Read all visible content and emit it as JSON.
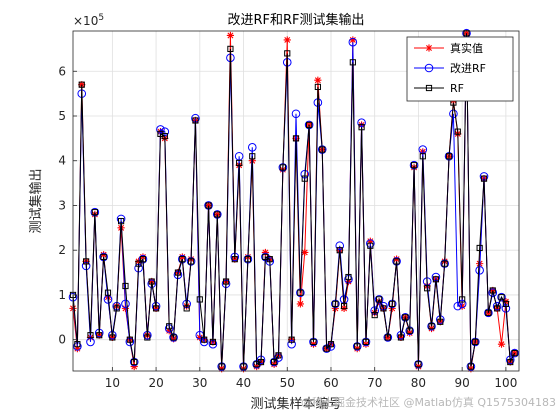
{
  "chart_data": {
    "type": "line",
    "title": "改进RF和RF测试集输出",
    "xlabel": "测试集样本编号",
    "ylabel": "测试集输出",
    "y_exponent_label": "×10",
    "y_exponent_power": "5",
    "xlim": [
      1,
      103
    ],
    "ylim": [
      -0.7,
      6.9
    ],
    "x_ticks": [
      10,
      20,
      30,
      40,
      50,
      60,
      70,
      80,
      90,
      100
    ],
    "y_ticks": [
      0,
      1,
      2,
      3,
      4,
      5,
      6
    ],
    "grid": true,
    "legend_position": "top-right",
    "x": [
      1,
      2,
      3,
      4,
      5,
      6,
      7,
      8,
      9,
      10,
      11,
      12,
      13,
      14,
      15,
      16,
      17,
      18,
      19,
      20,
      21,
      22,
      23,
      24,
      25,
      26,
      27,
      28,
      29,
      30,
      31,
      32,
      33,
      34,
      35,
      36,
      37,
      38,
      39,
      40,
      41,
      42,
      43,
      44,
      45,
      46,
      47,
      48,
      49,
      50,
      51,
      52,
      53,
      54,
      55,
      56,
      57,
      58,
      59,
      60,
      61,
      62,
      63,
      64,
      65,
      66,
      67,
      68,
      69,
      70,
      71,
      72,
      73,
      74,
      75,
      76,
      77,
      78,
      79,
      80,
      81,
      82,
      83,
      84,
      85,
      86,
      87,
      88,
      89,
      90,
      91,
      92,
      93,
      94,
      95,
      96,
      97,
      98,
      99,
      100,
      101,
      102
    ],
    "series": [
      {
        "name": "真实值",
        "color": "#ff0000",
        "marker": "star",
        "values": [
          0.7,
          -0.2,
          5.7,
          1.75,
          0.05,
          2.8,
          0.1,
          1.9,
          0.95,
          0.05,
          0.75,
          2.5,
          0.7,
          0,
          -0.6,
          1.75,
          1.85,
          0.1,
          1.3,
          0.7,
          4.65,
          4.5,
          0.2,
          0.02,
          1.5,
          1.85,
          0.75,
          1.8,
          4.9,
          0.05,
          0,
          3.0,
          -0.05,
          2.8,
          -0.65,
          1.3,
          6.8,
          1.8,
          3.9,
          -0.65,
          1.85,
          4.0,
          -0.6,
          -0.5,
          1.95,
          1.8,
          -0.55,
          -0.35,
          3.8,
          6.7,
          0,
          4.5,
          0.8,
          1.95,
          4.8,
          -0.1,
          5.8,
          4.25,
          -0.2,
          -0.1,
          0.7,
          2.0,
          0.7,
          1.3,
          6.7,
          -0.2,
          4.8,
          -0.1,
          2.2,
          0.6,
          0.85,
          0.7,
          0.05,
          0.7,
          1.8,
          0.05,
          0.5,
          0.15,
          3.85,
          -0.6,
          4.2,
          1.2,
          0.25,
          1.35,
          0.4,
          1.75,
          4.1,
          5.35,
          4.6,
          0.75,
          6.85,
          -0.65,
          -0.05,
          1.7,
          3.6,
          0.6,
          1.1,
          0.7,
          -0.1,
          0.85,
          -0.5,
          -0.3
        ]
      },
      {
        "name": "改进RF",
        "color": "#0000ff",
        "marker": "circle",
        "values": [
          0.95,
          -0.15,
          5.5,
          1.65,
          -0.05,
          2.85,
          0.15,
          1.85,
          0.9,
          0.1,
          0.75,
          2.7,
          0.8,
          -0.05,
          -0.5,
          1.6,
          1.8,
          0.1,
          1.25,
          0.75,
          4.7,
          4.65,
          0.25,
          0.05,
          1.45,
          1.8,
          0.8,
          1.75,
          4.95,
          0.1,
          -0.05,
          3.0,
          -0.1,
          2.8,
          -0.6,
          1.25,
          6.3,
          1.85,
          4.1,
          -0.6,
          1.8,
          4.3,
          -0.55,
          -0.45,
          1.85,
          1.75,
          -0.5,
          -0.4,
          3.85,
          6.2,
          -0.1,
          5.05,
          1.05,
          3.7,
          4.8,
          -0.05,
          5.3,
          4.25,
          -0.2,
          -0.15,
          0.8,
          2.1,
          0.9,
          1.35,
          6.65,
          -0.15,
          4.85,
          -0.05,
          2.15,
          0.65,
          0.9,
          0.75,
          0.05,
          0.8,
          1.75,
          0.1,
          0.5,
          0.2,
          3.9,
          -0.55,
          4.25,
          1.3,
          0.3,
          1.4,
          0.45,
          1.7,
          4.1,
          5.05,
          0.75,
          0.8,
          6.85,
          -0.6,
          -0.05,
          1.55,
          3.65,
          0.6,
          1.05,
          0.75,
          0.95,
          0.7,
          -0.45,
          -0.3
        ]
      },
      {
        "name": "RF",
        "color": "#000000",
        "marker": "square",
        "values": [
          1.0,
          -0.1,
          5.7,
          1.75,
          0.1,
          2.85,
          0.1,
          1.85,
          1.05,
          0.05,
          0.7,
          2.65,
          1.2,
          0,
          -0.5,
          1.7,
          1.8,
          0.05,
          1.3,
          0.7,
          4.6,
          4.55,
          0.3,
          0.05,
          1.5,
          1.8,
          0.7,
          1.75,
          4.9,
          0.9,
          0,
          3.0,
          -0.05,
          2.8,
          -0.6,
          1.3,
          6.5,
          1.8,
          3.95,
          -0.6,
          1.8,
          4.1,
          -0.55,
          -0.5,
          1.85,
          1.8,
          -0.5,
          -0.35,
          3.85,
          6.4,
          0,
          4.5,
          1.05,
          3.6,
          4.8,
          -0.05,
          5.65,
          4.25,
          -0.2,
          -0.1,
          0.8,
          2.0,
          0.75,
          1.4,
          6.2,
          -0.15,
          4.75,
          -0.05,
          2.1,
          0.55,
          0.9,
          0.7,
          0.05,
          0.8,
          1.75,
          0.05,
          0.5,
          0.2,
          3.9,
          -0.55,
          4.1,
          1.15,
          0.3,
          1.35,
          0.4,
          1.7,
          4.1,
          5.3,
          4.65,
          0.9,
          6.85,
          -0.6,
          -0.05,
          2.05,
          3.6,
          0.6,
          1.1,
          0.7,
          0.95,
          0.8,
          -0.5,
          -0.3
        ]
      }
    ]
  },
  "watermark": {
    "text": "@稀土掘金技术社区 @Matlab仿真 Q1575304183"
  }
}
